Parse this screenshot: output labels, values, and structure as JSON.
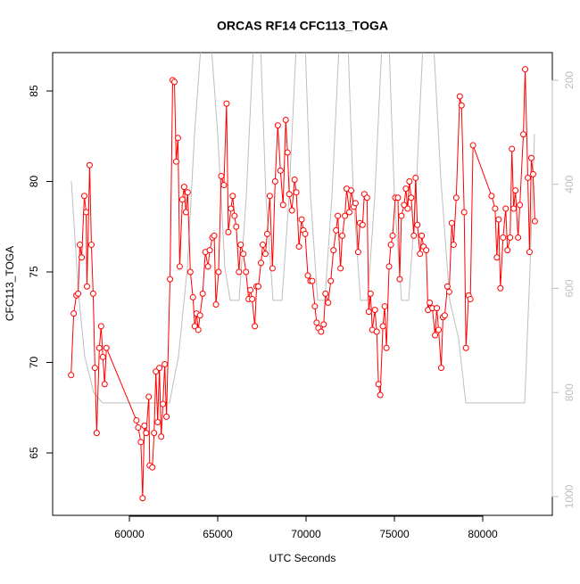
{
  "chart_data": {
    "type": "line",
    "title": "ORCAS RF14 CFC113_TOGA",
    "x_label": "UTC Seconds",
    "y_label": "CFC113_TOGA",
    "xlim": [
      55657,
      83939
    ],
    "xticks": [
      60000,
      65000,
      70000,
      75000,
      80000
    ],
    "ylim": [
      61.55,
      87.12
    ],
    "yticks": [
      65,
      70,
      75,
      80,
      85
    ],
    "y2lim": [
      1036,
      147
    ],
    "y2ticks": [
      200,
      400,
      600,
      800,
      1000
    ],
    "series": [
      {
        "color": "#ff0000",
        "marker": "circle",
        "x": [
          56700,
          56850,
          57000,
          57100,
          57200,
          57300,
          57450,
          57550,
          57600,
          57750,
          57850,
          57950,
          58050,
          58150,
          58300,
          58400,
          58500,
          58600,
          58700,
          60400,
          60500,
          60650,
          60750,
          60850,
          60950,
          61100,
          61150,
          61300,
          61400,
          61500,
          61600,
          61700,
          61800,
          61900,
          62000,
          62100,
          62300,
          62450,
          62550,
          62650,
          62750,
          62850,
          63000,
          63100,
          63200,
          63300,
          63450,
          63600,
          63700,
          63800,
          63900,
          64000,
          64150,
          64300,
          64450,
          64550,
          64700,
          64800,
          64900,
          65050,
          65200,
          65350,
          65500,
          65600,
          65750,
          65850,
          65950,
          66050,
          66200,
          66300,
          66450,
          66600,
          66750,
          66850,
          66950,
          67100,
          67200,
          67300,
          67450,
          67550,
          67700,
          67800,
          67950,
          68100,
          68250,
          68400,
          68550,
          68700,
          68850,
          68950,
          69050,
          69200,
          69350,
          69450,
          69600,
          69750,
          69850,
          69950,
          70100,
          70250,
          70350,
          70500,
          70600,
          70700,
          70850,
          71000,
          71100,
          71250,
          71400,
          71550,
          71700,
          71800,
          71950,
          72050,
          72200,
          72300,
          72450,
          72550,
          72700,
          72800,
          72950,
          73050,
          73200,
          73300,
          73450,
          73550,
          73650,
          73750,
          73900,
          74000,
          74100,
          74200,
          74350,
          74450,
          74550,
          74700,
          74800,
          74900,
          75050,
          75200,
          75300,
          75400,
          75550,
          75650,
          75750,
          75850,
          75950,
          76100,
          76200,
          76300,
          76450,
          76550,
          76650,
          76800,
          76900,
          77000,
          77150,
          77300,
          77400,
          77500,
          77650,
          77750,
          77850,
          78000,
          78100,
          78250,
          78350,
          78500,
          78700,
          78800,
          78950,
          79050,
          79200,
          79300,
          79450,
          80500,
          80700,
          80800,
          80900,
          81000,
          81150,
          81300,
          81400,
          81550,
          81650,
          81750,
          81850,
          82000,
          82100,
          82300,
          82400,
          82550,
          82650,
          82750,
          82850,
          82950
        ],
        "values": [
          69.3,
          72.7,
          73.7,
          73.8,
          76.5,
          75.8,
          79.2,
          78.3,
          74.2,
          80.9,
          76.5,
          73.8,
          69.7,
          66.1,
          70.8,
          72.0,
          70.3,
          68.8,
          70.8,
          66.8,
          66.4,
          65.6,
          62.5,
          66.5,
          66.1,
          68.1,
          64.3,
          64.2,
          66.1,
          69.5,
          66.7,
          69.7,
          65.9,
          67.7,
          69.9,
          67.0,
          74.6,
          85.6,
          85.5,
          81.1,
          82.4,
          75.3,
          79.0,
          79.7,
          78.3,
          79.4,
          75.0,
          73.6,
          72.0,
          72.7,
          71.8,
          72.6,
          73.8,
          76.1,
          75.3,
          76.2,
          76.9,
          77.0,
          73.2,
          75.0,
          80.3,
          79.8,
          84.3,
          77.2,
          78.5,
          79.2,
          78.1,
          77.5,
          75.0,
          76.5,
          76.0,
          75.0,
          73.5,
          74.0,
          73.5,
          72.0,
          74.2,
          74.2,
          75.5,
          76.5,
          76.0,
          77.1,
          79.2,
          75.2,
          80.0,
          83.1,
          80.6,
          78.7,
          83.4,
          81.6,
          79.3,
          78.4,
          80.1,
          79.4,
          76.4,
          77.9,
          77.3,
          77.1,
          74.8,
          74.5,
          74.5,
          73.1,
          72.2,
          71.9,
          71.7,
          72.1,
          73.8,
          73.3,
          74.5,
          76.2,
          77.3,
          78.1,
          75.2,
          77.0,
          78.1,
          79.6,
          78.3,
          79.5,
          78.6,
          78.8,
          76.1,
          77.7,
          77.6,
          79.3,
          79.1,
          72.8,
          73.8,
          71.8,
          72.9,
          71.7,
          68.8,
          68.2,
          72.0,
          73.1,
          70.8,
          75.3,
          76.5,
          77.0,
          79.1,
          79.1,
          74.6,
          78.1,
          78.7,
          79.6,
          78.5,
          80.0,
          79.1,
          77.0,
          80.2,
          77.6,
          76.0,
          77.0,
          76.4,
          76.2,
          72.9,
          73.3,
          73.0,
          71.5,
          73.0,
          71.8,
          69.7,
          72.5,
          72.6,
          74.2,
          73.9,
          77.7,
          76.5,
          79.1,
          84.7,
          84.2,
          78.3,
          70.8,
          73.7,
          73.5,
          82.0,
          79.2,
          78.5,
          75.8,
          77.9,
          74.1,
          76.9,
          78.5,
          76.2,
          76.9,
          81.8,
          78.5,
          79.5,
          76.9,
          78.7,
          82.6,
          86.2,
          80.2,
          76.1,
          81.3,
          80.4,
          77.8
        ]
      },
      {
        "color": "#bebebe",
        "axis": "y2",
        "x": [
          56717,
          57121,
          57475,
          57980,
          58485,
          62273,
          62778,
          63283,
          63687,
          64091,
          64596,
          65000,
          65404,
          65707,
          66212,
          66616,
          67020,
          67424,
          67727,
          68131,
          68636,
          69040,
          69444,
          69949,
          70253,
          70657,
          71061,
          71465,
          71869,
          72374,
          72677,
          73081,
          73485,
          73889,
          74293,
          74697,
          75000,
          75404,
          75808,
          76212,
          76616,
          77222,
          77626,
          78131,
          78636,
          79040,
          82374,
          82677,
          82929
        ],
        "values": [
          394,
          611,
          731,
          800,
          820,
          820,
          731,
          560,
          303,
          114,
          114,
          303,
          560,
          623,
          623,
          423,
          131,
          131,
          423,
          623,
          623,
          423,
          131,
          131,
          423,
          623,
          623,
          423,
          131,
          131,
          423,
          623,
          623,
          423,
          131,
          131,
          423,
          623,
          623,
          423,
          131,
          131,
          388,
          623,
          697,
          820,
          820,
          560,
          303
        ]
      }
    ]
  }
}
